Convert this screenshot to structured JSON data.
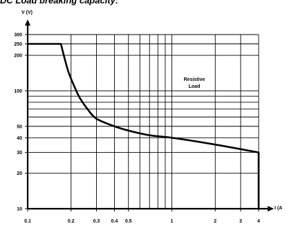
{
  "title": "DC Load breaking capacity:",
  "chart_data": {
    "type": "line",
    "title": "DC Load breaking capacity:",
    "xlabel": "I (A",
    "ylabel": "V (V)",
    "x_scale": "log",
    "y_scale": "log",
    "xlim": [
      0.1,
      4
    ],
    "ylim": [
      10,
      300
    ],
    "x_ticks": [
      0.1,
      0.2,
      0.3,
      0.4,
      0.5,
      1,
      2,
      3,
      4
    ],
    "x_tick_labels": [
      "0.1",
      "0.2",
      "0.3",
      "0.4",
      "0.5",
      "1",
      "2",
      "3",
      "4"
    ],
    "y_ticks": [
      10,
      20,
      30,
      40,
      50,
      100,
      200,
      250,
      300
    ],
    "y_tick_labels": [
      "10",
      "20",
      "30",
      "40",
      "50",
      "100",
      "200",
      "250",
      "300"
    ],
    "grid": true,
    "annotation": [
      "Resistive",
      "Load"
    ],
    "series": [
      {
        "x": [
          0.1,
          0.17,
          0.19,
          0.21,
          0.23,
          0.26,
          0.3,
          0.4,
          0.5,
          0.7,
          1,
          2,
          4,
          4
        ],
        "y": [
          250,
          250,
          150,
          110,
          87,
          70,
          58,
          50,
          46,
          42,
          40,
          35,
          30,
          10
        ]
      }
    ]
  }
}
